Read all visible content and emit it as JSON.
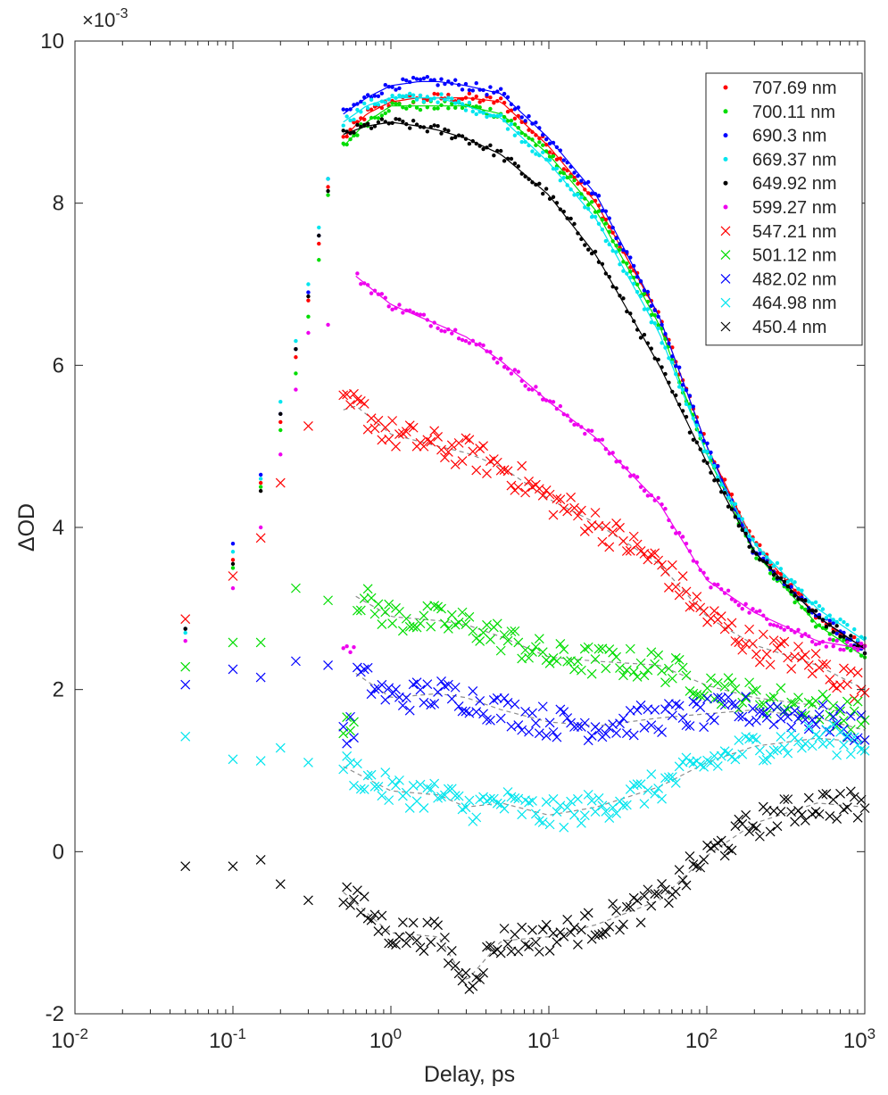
{
  "chart_data": {
    "type": "scatter",
    "title": "",
    "xlabel": "Delay, ps",
    "ylabel": "ΔOD",
    "x_scale": "log",
    "xlim": [
      0.01,
      1000
    ],
    "ylim": [
      -2,
      10
    ],
    "y_multiplier_label": "×10-3",
    "y_multiplier": {
      "base": "×10",
      "exp": "-3"
    },
    "x_tick_labels": [
      {
        "base": "10",
        "exp": "-2"
      },
      {
        "base": "10",
        "exp": "-1"
      },
      {
        "base": "10",
        "exp": "0"
      },
      {
        "base": "10",
        "exp": "1"
      },
      {
        "base": "10",
        "exp": "2"
      },
      {
        "base": "10",
        "exp": "3"
      }
    ],
    "y_tick_labels": [
      "-2",
      "0",
      "2",
      "4",
      "6",
      "8",
      "10"
    ],
    "grid": false,
    "legend_position": "top-right",
    "fit_lines": "fitted curves drawn through each series",
    "series": [
      {
        "name": "707.69 nm",
        "marker": "dot",
        "color": "#ff0000",
        "points": [
          [
            0.05,
            2.75
          ],
          [
            0.1,
            3.6
          ],
          [
            0.15,
            4.55
          ],
          [
            0.2,
            5.3
          ],
          [
            0.25,
            6.1
          ],
          [
            0.3,
            6.8
          ],
          [
            0.35,
            7.5
          ],
          [
            0.4,
            8.2
          ],
          [
            0.5,
            8.8
          ],
          [
            0.7,
            9.1
          ],
          [
            1,
            9.25
          ],
          [
            1.5,
            9.3
          ],
          [
            2,
            9.3
          ],
          [
            3,
            9.3
          ],
          [
            5,
            9.25
          ],
          [
            10,
            8.7
          ],
          [
            20,
            8.0
          ],
          [
            50,
            6.6
          ],
          [
            100,
            5.0
          ],
          [
            200,
            3.8
          ],
          [
            500,
            2.9
          ],
          [
            1000,
            2.5
          ]
        ]
      },
      {
        "name": "700.11 nm",
        "marker": "dot",
        "color": "#00dd00",
        "points": [
          [
            0.05,
            2.75
          ],
          [
            0.1,
            3.5
          ],
          [
            0.15,
            4.5
          ],
          [
            0.2,
            5.2
          ],
          [
            0.25,
            5.9
          ],
          [
            0.3,
            6.6
          ],
          [
            0.35,
            7.3
          ],
          [
            0.4,
            8.1
          ],
          [
            0.5,
            8.7
          ],
          [
            0.7,
            9.0
          ],
          [
            1,
            9.2
          ],
          [
            1.5,
            9.2
          ],
          [
            2,
            9.2
          ],
          [
            3,
            9.2
          ],
          [
            5,
            9.1
          ],
          [
            10,
            8.6
          ],
          [
            20,
            7.9
          ],
          [
            50,
            6.5
          ],
          [
            100,
            4.9
          ],
          [
            200,
            3.7
          ],
          [
            500,
            2.8
          ],
          [
            1000,
            2.4
          ]
        ]
      },
      {
        "name": "690.3 nm",
        "marker": "dot",
        "color": "#0000ff",
        "points": [
          [
            0.05,
            2.75
          ],
          [
            0.1,
            3.8
          ],
          [
            0.15,
            4.65
          ],
          [
            0.2,
            5.4
          ],
          [
            0.25,
            6.2
          ],
          [
            0.3,
            6.9
          ],
          [
            0.35,
            7.6
          ],
          [
            0.4,
            8.3
          ],
          [
            0.5,
            9.1
          ],
          [
            0.7,
            9.3
          ],
          [
            1,
            9.45
          ],
          [
            1.5,
            9.5
          ],
          [
            2,
            9.5
          ],
          [
            3,
            9.45
          ],
          [
            5,
            9.35
          ],
          [
            10,
            8.8
          ],
          [
            20,
            8.1
          ],
          [
            50,
            6.6
          ],
          [
            100,
            5.0
          ],
          [
            200,
            3.7
          ],
          [
            500,
            2.9
          ],
          [
            1000,
            2.5
          ]
        ]
      },
      {
        "name": "669.37 nm",
        "marker": "dot",
        "color": "#00e5ee",
        "points": [
          [
            0.05,
            2.7
          ],
          [
            0.1,
            3.7
          ],
          [
            0.15,
            4.6
          ],
          [
            0.2,
            5.55
          ],
          [
            0.25,
            6.3
          ],
          [
            0.3,
            7.0
          ],
          [
            0.35,
            7.7
          ],
          [
            0.4,
            8.3
          ],
          [
            0.5,
            9.0
          ],
          [
            0.7,
            9.2
          ],
          [
            1,
            9.3
          ],
          [
            1.5,
            9.3
          ],
          [
            2,
            9.3
          ],
          [
            3,
            9.2
          ],
          [
            5,
            9.05
          ],
          [
            10,
            8.5
          ],
          [
            20,
            7.8
          ],
          [
            50,
            6.4
          ],
          [
            100,
            4.9
          ],
          [
            200,
            3.8
          ],
          [
            500,
            3.0
          ],
          [
            1000,
            2.6
          ]
        ]
      },
      {
        "name": "649.92 nm",
        "marker": "dot",
        "color": "#000000",
        "points": [
          [
            0.05,
            2.75
          ],
          [
            0.1,
            3.55
          ],
          [
            0.15,
            4.45
          ],
          [
            0.2,
            5.4
          ],
          [
            0.25,
            6.2
          ],
          [
            0.3,
            6.85
          ],
          [
            0.35,
            7.6
          ],
          [
            0.4,
            8.15
          ],
          [
            0.5,
            8.85
          ],
          [
            0.7,
            8.95
          ],
          [
            1,
            9.0
          ],
          [
            1.5,
            8.95
          ],
          [
            2,
            8.9
          ],
          [
            3,
            8.8
          ],
          [
            5,
            8.6
          ],
          [
            10,
            8.1
          ],
          [
            20,
            7.35
          ],
          [
            50,
            6.0
          ],
          [
            100,
            4.8
          ],
          [
            200,
            3.7
          ],
          [
            500,
            2.9
          ],
          [
            1000,
            2.5
          ]
        ]
      },
      {
        "name": "599.27 nm",
        "marker": "dot",
        "color": "#ee00ee",
        "points": [
          [
            0.05,
            2.6
          ],
          [
            0.1,
            3.25
          ],
          [
            0.15,
            4.0
          ],
          [
            0.2,
            4.9
          ],
          [
            0.25,
            5.7
          ],
          [
            0.3,
            6.4
          ],
          [
            0.4,
            6.5
          ],
          [
            0.6,
            7.1
          ],
          [
            1,
            6.75
          ],
          [
            2,
            6.5
          ],
          [
            3,
            6.35
          ],
          [
            5,
            6.05
          ],
          [
            10,
            5.55
          ],
          [
            20,
            5.1
          ],
          [
            50,
            4.3
          ],
          [
            100,
            3.35
          ],
          [
            200,
            2.95
          ],
          [
            500,
            2.6
          ],
          [
            1000,
            2.5
          ]
        ]
      },
      {
        "name": "547.21 nm",
        "marker": "x",
        "color": "#ff0000",
        "points": [
          [
            0.05,
            2.87
          ],
          [
            0.1,
            3.4
          ],
          [
            0.15,
            3.87
          ],
          [
            0.2,
            4.55
          ],
          [
            0.3,
            5.25
          ],
          [
            0.5,
            5.45
          ],
          [
            0.6,
            5.5
          ],
          [
            1,
            5.15
          ],
          [
            2,
            5.0
          ],
          [
            3,
            4.92
          ],
          [
            5,
            4.75
          ],
          [
            10,
            4.35
          ],
          [
            20,
            4.05
          ],
          [
            50,
            3.55
          ],
          [
            100,
            2.9
          ],
          [
            200,
            2.55
          ],
          [
            500,
            2.3
          ],
          [
            1000,
            2.0
          ]
        ]
      },
      {
        "name": "501.12 nm",
        "marker": "x",
        "color": "#00dd00",
        "points": [
          [
            0.05,
            2.28
          ],
          [
            0.1,
            2.58
          ],
          [
            0.15,
            2.58
          ],
          [
            0.25,
            3.25
          ],
          [
            0.4,
            3.1
          ],
          [
            0.6,
            3.15
          ],
          [
            1,
            2.9
          ],
          [
            2,
            2.85
          ],
          [
            3,
            2.8
          ],
          [
            5,
            2.65
          ],
          [
            10,
            2.4
          ],
          [
            20,
            2.35
          ],
          [
            50,
            2.3
          ],
          [
            100,
            2.05
          ],
          [
            200,
            1.9
          ],
          [
            500,
            1.8
          ],
          [
            1000,
            1.65
          ]
        ]
      },
      {
        "name": "482.02 nm",
        "marker": "x",
        "color": "#0000ff",
        "points": [
          [
            0.05,
            2.06
          ],
          [
            0.1,
            2.25
          ],
          [
            0.15,
            2.15
          ],
          [
            0.25,
            2.35
          ],
          [
            0.4,
            2.3
          ],
          [
            0.6,
            2.2
          ],
          [
            1,
            1.9
          ],
          [
            2,
            1.95
          ],
          [
            3,
            1.9
          ],
          [
            5,
            1.75
          ],
          [
            10,
            1.6
          ],
          [
            20,
            1.55
          ],
          [
            50,
            1.65
          ],
          [
            100,
            1.7
          ],
          [
            200,
            1.75
          ],
          [
            500,
            1.65
          ],
          [
            1000,
            1.5
          ]
        ]
      },
      {
        "name": "464.98 nm",
        "marker": "x",
        "color": "#00e5ee",
        "points": [
          [
            0.05,
            1.42
          ],
          [
            0.1,
            1.14
          ],
          [
            0.15,
            1.12
          ],
          [
            0.2,
            1.28
          ],
          [
            0.3,
            1.1
          ],
          [
            0.5,
            1.05
          ],
          [
            1,
            0.75
          ],
          [
            2,
            0.7
          ],
          [
            3,
            0.55
          ],
          [
            5,
            0.6
          ],
          [
            10,
            0.45
          ],
          [
            20,
            0.55
          ],
          [
            50,
            0.8
          ],
          [
            100,
            1.1
          ],
          [
            200,
            1.3
          ],
          [
            500,
            1.4
          ],
          [
            1000,
            1.35
          ]
        ]
      },
      {
        "name": "450.4 nm",
        "marker": "x",
        "color": "#000000",
        "points": [
          [
            0.05,
            -0.18
          ],
          [
            0.1,
            -0.18
          ],
          [
            0.15,
            -0.1
          ],
          [
            0.2,
            -0.4
          ],
          [
            0.3,
            -0.6
          ],
          [
            0.5,
            -0.5
          ],
          [
            0.8,
            -0.85
          ],
          [
            1,
            -1.0
          ],
          [
            2,
            -1.05
          ],
          [
            3,
            -1.6
          ],
          [
            5,
            -1.1
          ],
          [
            10,
            -1.05
          ],
          [
            20,
            -0.9
          ],
          [
            50,
            -0.6
          ],
          [
            100,
            -0.05
          ],
          [
            200,
            0.35
          ],
          [
            500,
            0.6
          ],
          [
            1000,
            0.55
          ]
        ]
      }
    ]
  }
}
